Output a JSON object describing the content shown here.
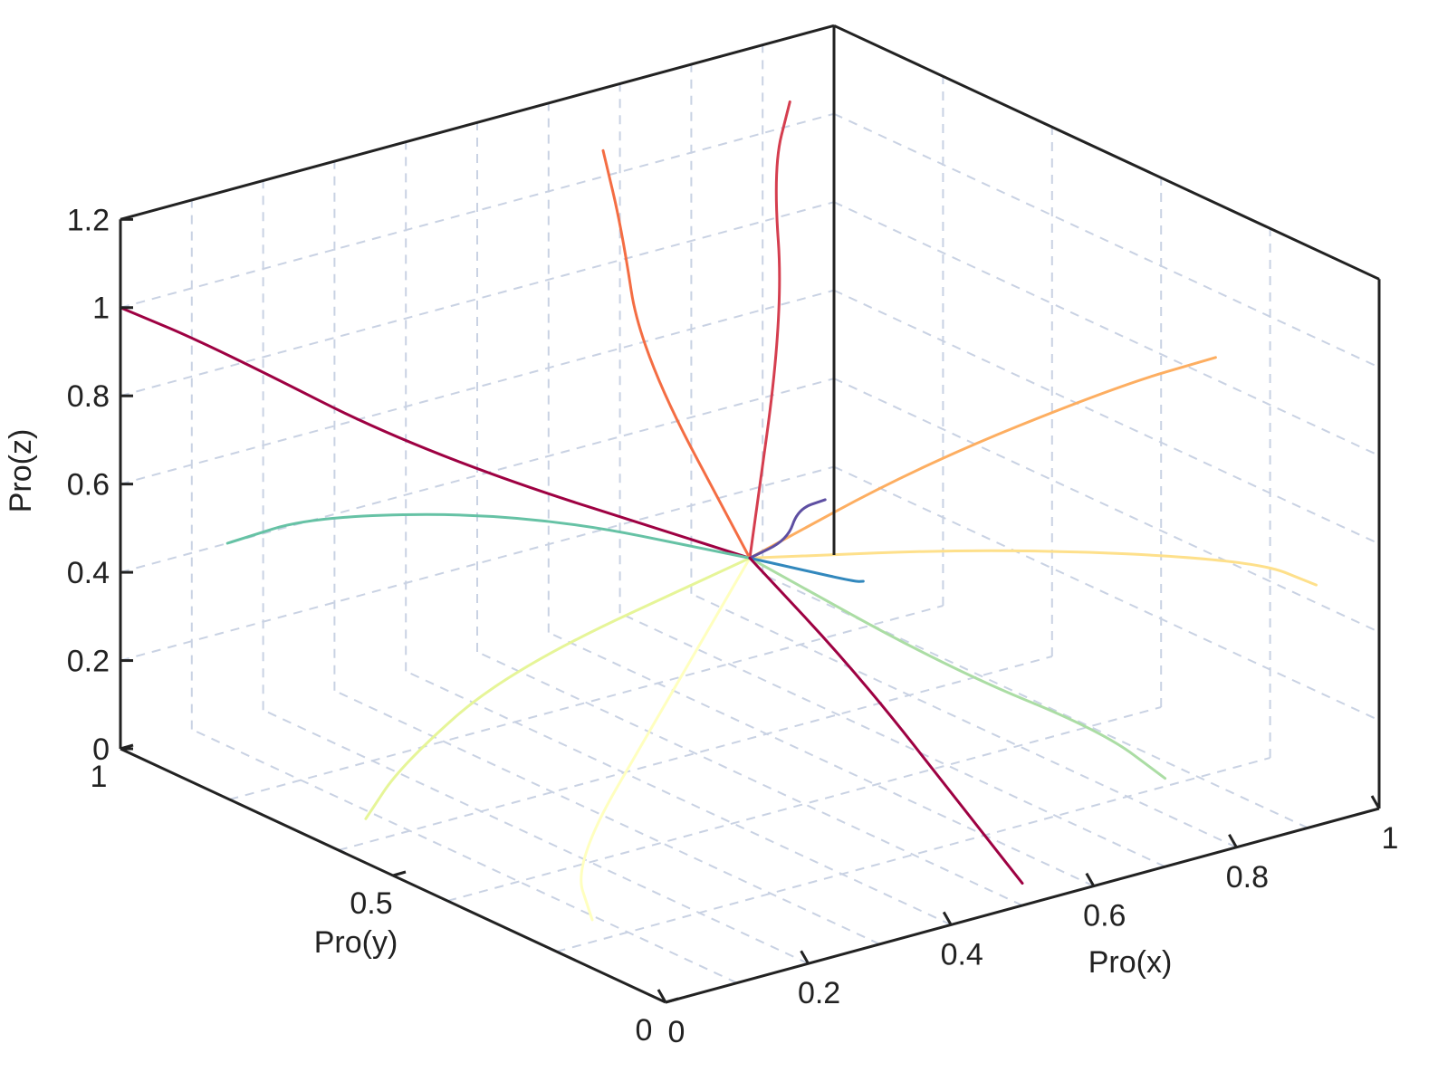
{
  "chart_data": {
    "type": "line",
    "dimensions": 3,
    "xlabel": "Pro(x)",
    "ylabel": "Pro(y)",
    "zlabel": "Pro(z)",
    "xlim": [
      0,
      1
    ],
    "ylim": [
      0,
      1
    ],
    "zlim": [
      0,
      1.2
    ],
    "x_ticks": [
      "0",
      "0.2",
      "0.4",
      "0.6",
      "0.8",
      "1"
    ],
    "y_ticks": [
      "0",
      "0.5",
      "1"
    ],
    "z_ticks": [
      "0",
      "0.2",
      "0.4",
      "0.6",
      "0.8",
      "1",
      "1.2"
    ],
    "grid": true,
    "legend": "none",
    "convergence_point": {
      "x": 0.5,
      "y": 0.5,
      "z": 0.5
    },
    "series_colors": [
      "#9e0142",
      "#d53e4f",
      "#f46d43",
      "#fdae61",
      "#fee08b",
      "#ffffbf",
      "#e6f598",
      "#abdda4",
      "#66c2a5",
      "#3288bd",
      "#5e4fa2"
    ],
    "series": [
      {
        "x": [
          0.0,
          0.05,
          0.2,
          0.5
        ],
        "y": [
          1.0,
          0.9,
          0.7,
          0.5
        ],
        "z": [
          1.0,
          0.95,
          0.75,
          0.5
        ]
      },
      {
        "x": [
          0.9,
          0.8,
          0.7,
          0.5
        ],
        "y": [
          0.95,
          0.85,
          0.7,
          0.5
        ],
        "z": [
          1.1,
          1.05,
          0.85,
          0.5
        ]
      },
      {
        "x": [
          0.6,
          0.55,
          0.5,
          0.5
        ],
        "y": [
          0.9,
          0.8,
          0.7,
          0.5
        ],
        "z": [
          1.15,
          1.05,
          0.85,
          0.5
        ]
      },
      {
        "x": [
          1.0,
          0.9,
          0.7,
          0.5
        ],
        "y": [
          0.3,
          0.35,
          0.45,
          0.5
        ],
        "z": [
          0.85,
          0.8,
          0.65,
          0.5
        ]
      },
      {
        "x": [
          0.95,
          0.9,
          0.7,
          0.5
        ],
        "y": [
          0.05,
          0.1,
          0.3,
          0.5
        ],
        "z": [
          0.5,
          0.55,
          0.55,
          0.5
        ]
      },
      {
        "x": [
          0.05,
          0.1,
          0.3,
          0.5
        ],
        "y": [
          0.2,
          0.3,
          0.4,
          0.5
        ],
        "z": [
          0.05,
          0.1,
          0.3,
          0.5
        ]
      },
      {
        "x": [
          0.0,
          0.05,
          0.2,
          0.5
        ],
        "y": [
          0.55,
          0.55,
          0.55,
          0.5
        ],
        "z": [
          0.1,
          0.2,
          0.35,
          0.5
        ]
      },
      {
        "x": [
          0.7,
          0.65,
          0.55,
          0.5
        ],
        "y": [
          0.0,
          0.05,
          0.2,
          0.5
        ],
        "z": [
          0.2,
          0.3,
          0.4,
          0.5
        ]
      },
      {
        "x": [
          0.15,
          0.2,
          0.35,
          0.5
        ],
        "y": [
          1.0,
          0.9,
          0.7,
          0.5
        ],
        "z": [
          0.4,
          0.5,
          0.55,
          0.5
        ]
      },
      {
        "x": [
          0.85,
          0.8,
          0.65,
          0.5
        ],
        "y": [
          0.75,
          0.7,
          0.6,
          0.5
        ],
        "z": [
          0.15,
          0.2,
          0.35,
          0.5
        ]
      },
      {
        "x": [
          0.3,
          0.3,
          0.4,
          0.5
        ],
        "y": [
          0.1,
          0.15,
          0.3,
          0.5
        ],
        "z": [
          0.95,
          0.9,
          0.7,
          0.5
        ]
      },
      {
        "x": [
          0.5,
          0.5,
          0.5,
          0.5
        ],
        "y": [
          0.0,
          0.1,
          0.3,
          0.5
        ],
        "z": [
          0.05,
          0.15,
          0.35,
          0.5
        ]
      }
    ]
  }
}
